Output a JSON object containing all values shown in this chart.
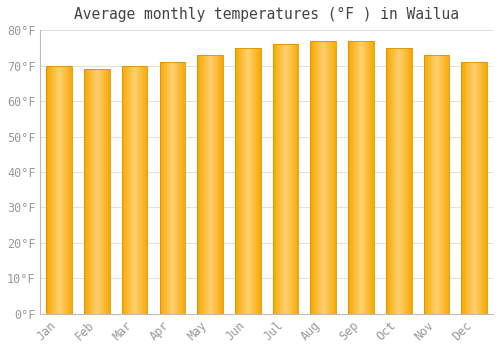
{
  "title": "Average monthly temperatures (°F ) in Wailua",
  "months": [
    "Jan",
    "Feb",
    "Mar",
    "Apr",
    "May",
    "Jun",
    "Jul",
    "Aug",
    "Sep",
    "Oct",
    "Nov",
    "Dec"
  ],
  "temperatures": [
    70,
    69,
    70,
    71,
    73,
    75,
    76,
    77,
    77,
    75,
    73,
    71
  ],
  "bar_color_center": "#FFD070",
  "bar_color_edge": "#F5A800",
  "bar_color_dark": "#E09000",
  "background_color": "#FFFFFF",
  "grid_color": "#E0E0E0",
  "tick_label_color": "#999999",
  "title_color": "#444444",
  "ylim": [
    0,
    80
  ],
  "yticks": [
    0,
    10,
    20,
    30,
    40,
    50,
    60,
    70,
    80
  ],
  "title_fontsize": 10.5,
  "tick_fontsize": 8.5,
  "font_family": "monospace",
  "bar_width": 0.68
}
